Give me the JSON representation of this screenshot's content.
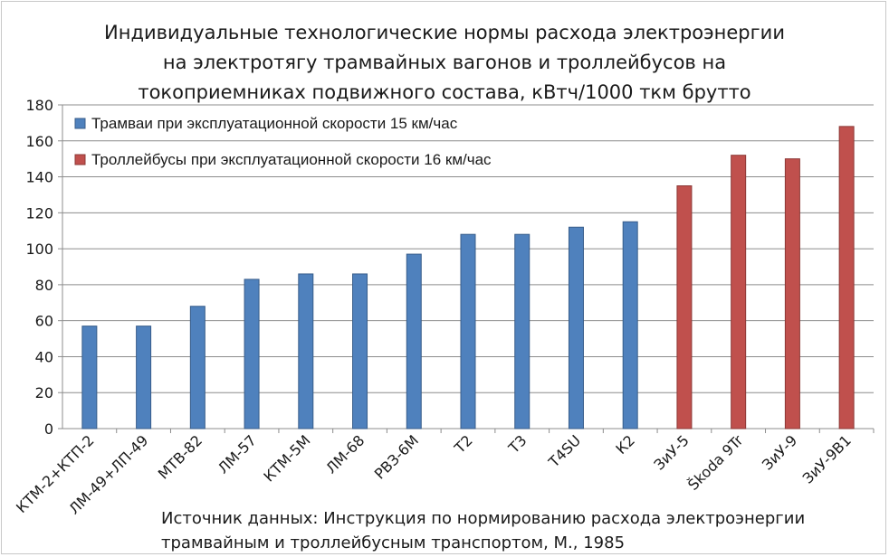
{
  "chart_data": {
    "type": "bar",
    "title_lines": [
      "Индивидуальные технологические нормы расхода электроэнергии",
      "на электротягу трамвайных вагонов и троллейбусов на",
      "токоприемниках подвижного состава, кВтч/1000 ткм брутто"
    ],
    "categories": [
      "КТМ-2+КТП-2",
      "ЛМ-49+ЛП-49",
      "МТВ-82",
      "ЛМ-57",
      "КТМ-5М",
      "ЛМ-68",
      "РВЗ-6М",
      "Т2",
      "Т3",
      "T4SU",
      "К2",
      "ЗиУ-5",
      "Škoda 9Tr",
      "ЗиУ-9",
      "ЗиУ-9В1"
    ],
    "values": [
      57,
      57,
      68,
      83,
      86,
      86,
      97,
      108,
      108,
      112,
      115,
      135,
      152,
      150,
      168
    ],
    "series": [
      {
        "name": "Трамваи при эксплуатационной скорости 15 км/час",
        "color": "#4f81bd",
        "stroke": "#385d8a",
        "range": [
          0,
          10
        ]
      },
      {
        "name": "Троллейбусы при эксплуатационной скорости 16 км/час",
        "color": "#c0504d",
        "stroke": "#8c3836",
        "range": [
          11,
          14
        ]
      }
    ],
    "ylim": [
      0,
      180
    ],
    "yticks": [
      "0",
      "20",
      "40",
      "60",
      "80",
      "100",
      "120",
      "140",
      "160",
      "180"
    ],
    "grid": true,
    "legend_position": "top-left"
  },
  "source_lines": [
    "Источник  данных: Инструкция по нормированию расхода электроэнергии",
    "трамвайным и троллейбусным транспортом, М., 1985"
  ]
}
